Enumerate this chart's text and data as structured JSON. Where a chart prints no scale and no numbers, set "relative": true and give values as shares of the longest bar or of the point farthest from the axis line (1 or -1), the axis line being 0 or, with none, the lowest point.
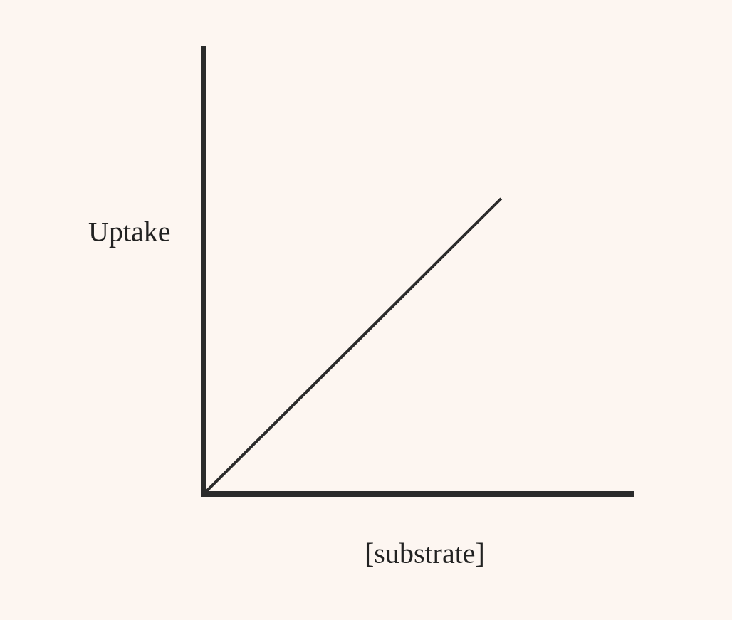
{
  "chart_data": {
    "type": "line",
    "relative": true,
    "xlabel": "[substrate]",
    "ylabel": "Uptake",
    "categories": [
      null,
      null
    ],
    "series": [
      {
        "color": "#2b2b2b",
        "values": [
          0,
          1
        ]
      }
    ]
  }
}
